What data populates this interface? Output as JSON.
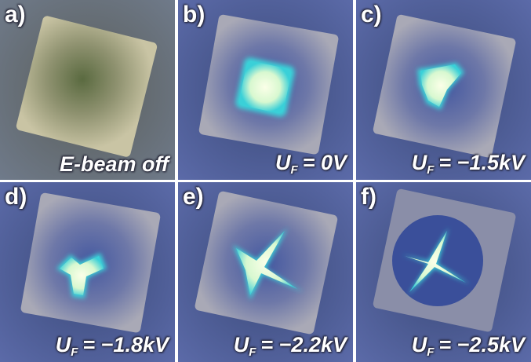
{
  "panels": [
    {
      "label": "a)",
      "caption": {
        "text": "E-beam off"
      }
    },
    {
      "label": "b)",
      "caption": {
        "symbol": "U",
        "subscript": "F",
        "text": "= 0V"
      }
    },
    {
      "label": "c)",
      "caption": {
        "symbol": "U",
        "subscript": "F",
        "text": "= −1.5kV"
      }
    },
    {
      "label": "d)",
      "caption": {
        "symbol": "U",
        "subscript": "F",
        "text": "= −1.8kV"
      }
    },
    {
      "label": "e)",
      "caption": {
        "symbol": "U",
        "subscript": "F",
        "text": "= −2.2kV"
      }
    },
    {
      "label": "f)",
      "caption": {
        "symbol": "U",
        "subscript": "F",
        "text": "= −2.5kV"
      }
    }
  ]
}
